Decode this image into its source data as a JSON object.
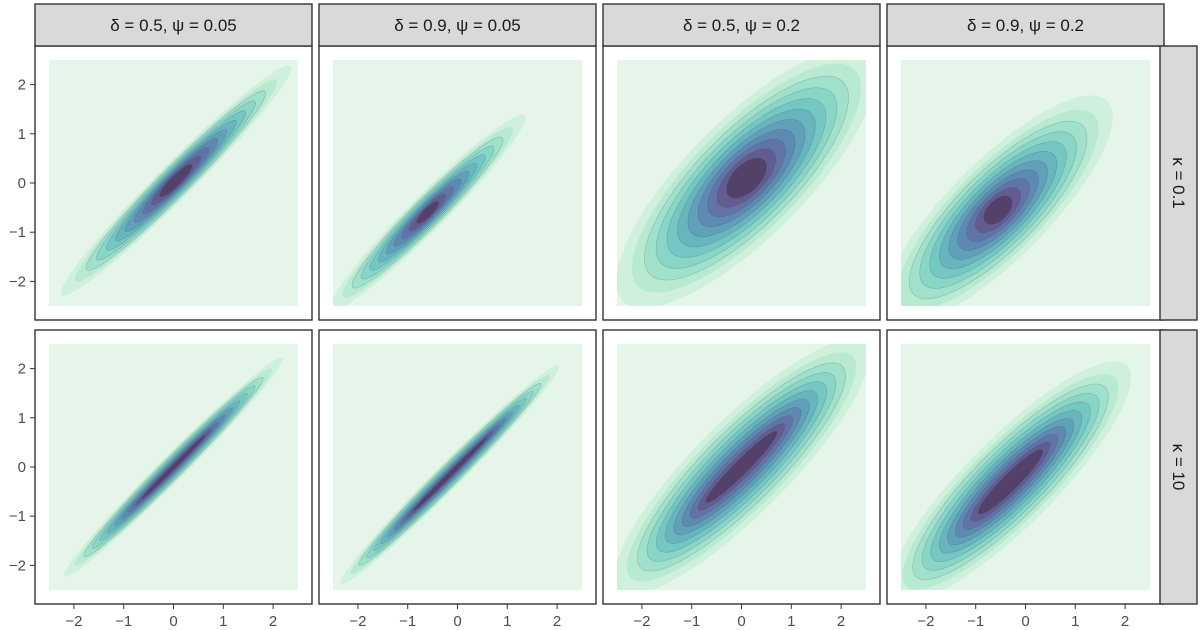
{
  "chart_data": {
    "type": "contour",
    "layout": "facet-grid",
    "col_facets": [
      "δ = 0.5, ψ = 0.05",
      "δ = 0.9, ψ = 0.05",
      "δ = 0.5, ψ = 0.2",
      "δ = 0.9, ψ = 0.2"
    ],
    "row_facets": [
      "κ = 0.1",
      "κ = 10"
    ],
    "xlim": [
      -2.5,
      2.5
    ],
    "ylim": [
      -2.5,
      2.5
    ],
    "x_ticks": [
      -2,
      -1,
      0,
      1,
      2
    ],
    "y_ticks": [
      -2,
      -1,
      0,
      1,
      2
    ],
    "x_tick_labels": [
      "−2",
      "−1",
      "0",
      "1",
      "2"
    ],
    "y_tick_labels": [
      "−2",
      "−1",
      "0",
      "1",
      "2"
    ],
    "xlabel": "",
    "ylabel": "",
    "title": "",
    "levels": 10,
    "panels": [
      {
        "row": 0,
        "col": 0,
        "center": [
          0.05,
          0.05
        ],
        "angle_deg": 45,
        "outer_axes": [
          3.25,
          0.36
        ],
        "inner_axes": [
          0.45,
          0.1
        ]
      },
      {
        "row": 0,
        "col": 1,
        "center": [
          -0.6,
          -0.6
        ],
        "angle_deg": 45,
        "outer_axes": [
          2.75,
          0.36
        ],
        "inner_axes": [
          0.3,
          0.08
        ]
      },
      {
        "row": 0,
        "col": 2,
        "center": [
          0.1,
          0.1
        ],
        "angle_deg": 45,
        "outer_axes": [
          3.5,
          1.2
        ],
        "inner_axes": [
          0.5,
          0.27
        ]
      },
      {
        "row": 0,
        "col": 3,
        "center": [
          -0.55,
          -0.55
        ],
        "angle_deg": 45,
        "outer_axes": [
          3.1,
          1.0
        ],
        "inner_axes": [
          0.35,
          0.2
        ]
      },
      {
        "row": 1,
        "col": 0,
        "center": [
          0.0,
          0.0
        ],
        "angle_deg": 45,
        "outer_axes": [
          3.1,
          0.26
        ],
        "inner_axes": [
          0.9,
          0.04
        ]
      },
      {
        "row": 1,
        "col": 1,
        "center": [
          -0.15,
          -0.15
        ],
        "angle_deg": 45,
        "outer_axes": [
          3.1,
          0.26
        ],
        "inner_axes": [
          1.05,
          0.04
        ]
      },
      {
        "row": 1,
        "col": 2,
        "center": [
          0.0,
          0.0
        ],
        "angle_deg": 45,
        "outer_axes": [
          3.5,
          0.95
        ],
        "inner_axes": [
          1.0,
          0.14
        ]
      },
      {
        "row": 1,
        "col": 3,
        "center": [
          -0.3,
          -0.3
        ],
        "angle_deg": 45,
        "outer_axes": [
          3.3,
          0.9
        ],
        "inner_axes": [
          0.9,
          0.16
        ]
      }
    ],
    "colors": {
      "panel_fill": "#e6f5ea",
      "strip_fill": "#d9d9d9",
      "palette": [
        "#ccefd9",
        "#b5e8cf",
        "#9de0cb",
        "#86d5c7",
        "#73c5c2",
        "#67b2bd",
        "#5f9db8",
        "#5e87b0",
        "#6271a4",
        "#635a8e",
        "#523f68"
      ]
    },
    "grid": false,
    "legend": "none"
  }
}
